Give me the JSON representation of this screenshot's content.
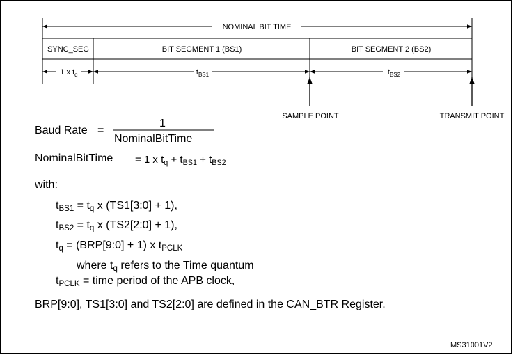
{
  "timing": {
    "nominal_bit_time": "NOMINAL BIT TIME",
    "segments": {
      "sync": "SYNC_SEG",
      "bs1": "BIT SEGMENT 1 (BS1)",
      "bs2": "BIT SEGMENT 2 (BS2)"
    },
    "durations": {
      "sync": {
        "prefix": "1 x t",
        "sub": "q"
      },
      "bs1": {
        "base": "t",
        "sub": "BS1"
      },
      "bs2": {
        "base": "t",
        "sub": "BS2"
      }
    },
    "points": {
      "sample": "SAMPLE POINT",
      "transmit": "TRANSMIT POINT"
    }
  },
  "formulas": {
    "baud_label": "Baud Rate",
    "baud_eq": "=",
    "baud_num": "1",
    "baud_den": "NominalBitTime",
    "nbt_label": "NominalBitTime",
    "nbt_expr": {
      "eq": "= 1 x t",
      "s1": "q",
      "p1": " + t",
      "s2": "BS1",
      "p2": " + t",
      "s3": "BS2"
    },
    "with": "with:",
    "tbs1": {
      "t": "t",
      "s1": "BS1",
      "m": " = t",
      "s2": "q",
      "r": " x (TS1[3:0] + 1),"
    },
    "tbs2": {
      "t": "t",
      "s1": "BS2",
      "m": " = t",
      "s2": "q",
      "r": " x (TS2[2:0] + 1),"
    },
    "tq": {
      "t": "t",
      "s1": "q",
      "m": " = (BRP[9:0] + 1) x t",
      "s2": "PCLK"
    },
    "where": {
      "a": "where t",
      "s": "q",
      "b": " refers to the Time quantum"
    },
    "tpclk": {
      "t": "t",
      "s1": "PCLK",
      "r": " = time period of the APB clock,"
    },
    "note": "BRP[9:0], TS1[3:0] and TS2[2:0] are defined in the CAN_BTR Register."
  },
  "figure_id": "MS31001V2"
}
